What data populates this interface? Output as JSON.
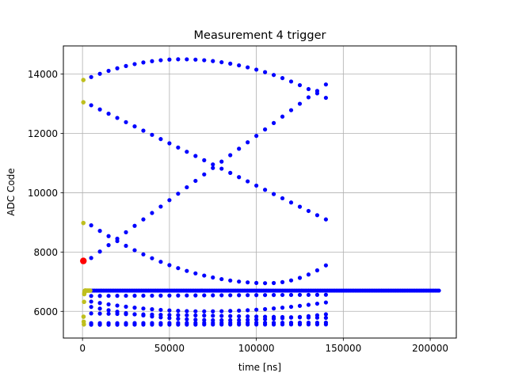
{
  "chart_data": {
    "type": "scatter",
    "title": "Measurement 4 trigger",
    "xlabel": "time [ns]",
    "ylabel": "ADC Code",
    "xlim": [
      -11000,
      215000
    ],
    "ylim": [
      5100,
      14950
    ],
    "xticks": [
      0,
      50000,
      100000,
      150000,
      200000
    ],
    "yticks": [
      6000,
      8000,
      10000,
      12000,
      14000
    ],
    "grid": true,
    "colors": {
      "main": "#0000ff",
      "early": "#bfbf1f",
      "trigger": "#ff0000"
    },
    "trigger_point": {
      "x": 500,
      "y": 7700
    },
    "early_points": {
      "x": [
        500,
        500,
        500,
        600,
        700,
        800,
        900,
        1000,
        1100,
        1200,
        1300,
        1400,
        1500,
        1700,
        2000,
        2500,
        3000,
        3500,
        4000,
        4500
      ],
      "y": [
        13800,
        13050,
        8980,
        5820,
        5650,
        5560,
        6320,
        6580,
        6620,
        6660,
        6680,
        6700,
        6700,
        6700,
        6700,
        6700,
        6700,
        6700,
        6700,
        6700
      ]
    },
    "curves": [
      {
        "x": [
          5000,
          140000
        ],
        "y": [
          13900,
          13200
        ],
        "peak": [
          57000,
          14500
        ]
      },
      {
        "x": [
          5000,
          140000
        ],
        "y": [
          12950,
          9100
        ]
      },
      {
        "x": [
          5000,
          140000
        ],
        "y": [
          7800,
          13650
        ]
      },
      {
        "x": [
          5000,
          140000
        ],
        "y": [
          8900,
          7550
        ],
        "peak": [
          107000,
          6950
        ]
      },
      {
        "x": [
          5000,
          140000
        ],
        "y": [
          6520,
          6560
        ]
      },
      {
        "x": [
          5000,
          140000
        ],
        "y": [
          6330,
          6300
        ],
        "peak": [
          70000,
          6000
        ]
      },
      {
        "x": [
          5000,
          140000
        ],
        "y": [
          6150,
          5900
        ],
        "peak": [
          80000,
          5700
        ]
      },
      {
        "x": [
          5000,
          140000
        ],
        "y": [
          5930,
          5780
        ]
      },
      {
        "x": [
          5000,
          140000
        ],
        "y": [
          5600,
          5620
        ]
      },
      {
        "x": [
          5000,
          140000
        ],
        "y": [
          5550,
          5560
        ]
      }
    ],
    "baseline": {
      "y": 6700,
      "x_start": 5000,
      "x_end": 205000
    }
  }
}
